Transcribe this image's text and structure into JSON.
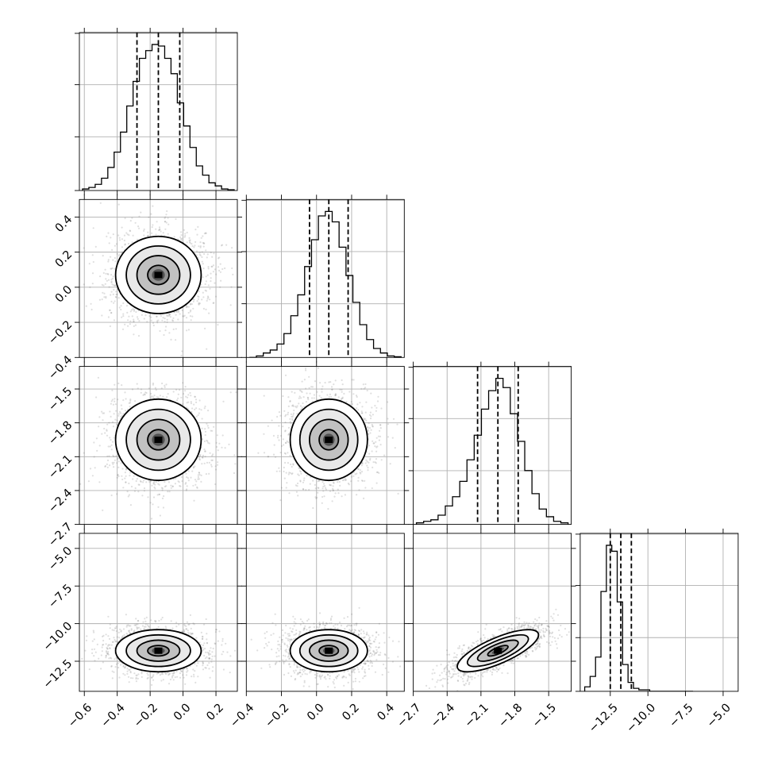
{
  "chart_data": {
    "type": "corner",
    "parameters": [
      {
        "mean": -0.15,
        "q16": -0.28,
        "q84": -0.02,
        "lim": [
          -0.63,
          0.33
        ],
        "ticks": [
          -0.6,
          -0.4,
          -0.2,
          0.0,
          0.2
        ],
        "tick_labels": [
          "−0.6",
          "−0.4",
          "−0.2",
          "0.0",
          "0.2"
        ]
      },
      {
        "mean": 0.07,
        "q16": -0.04,
        "q84": 0.18,
        "lim": [
          -0.4,
          0.5
        ],
        "ticks": [
          -0.4,
          -0.2,
          0.0,
          0.2,
          0.4
        ],
        "tick_labels": [
          "−0.4",
          "−0.2",
          "0.0",
          "0.2",
          "0.4"
        ]
      },
      {
        "mean": -1.95,
        "q16": -2.13,
        "q84": -1.77,
        "lim": [
          -2.7,
          -1.3
        ],
        "ticks": [
          -2.7,
          -2.4,
          -2.1,
          -1.8,
          -1.5
        ],
        "tick_labels": [
          "−2.7",
          "−2.4",
          "−2.1",
          "−1.8",
          "−1.5"
        ]
      },
      {
        "mean": -11.8,
        "q16": -12.5,
        "q84": -11.1,
        "lim": [
          -14.5,
          -4.0
        ],
        "ticks": [
          -12.5,
          -10.0,
          -7.5,
          -5.0
        ],
        "tick_labels": [
          "−12.5",
          "−10.0",
          "−7.5",
          "−5.0"
        ]
      }
    ],
    "histograms": [
      [
        0.01,
        0.02,
        0.04,
        0.08,
        0.15,
        0.25,
        0.38,
        0.55,
        0.71,
        0.86,
        0.91,
        0.95,
        0.94,
        0.86,
        0.76,
        0.57,
        0.42,
        0.28,
        0.16,
        0.1,
        0.05,
        0.03,
        0.01,
        0.005
      ],
      [
        0.0,
        0.01,
        0.03,
        0.05,
        0.09,
        0.16,
        0.28,
        0.42,
        0.61,
        0.79,
        0.95,
        0.98,
        0.91,
        0.74,
        0.55,
        0.37,
        0.22,
        0.12,
        0.06,
        0.03,
        0.01,
        0.005
      ],
      [
        0.01,
        0.02,
        0.03,
        0.06,
        0.12,
        0.18,
        0.28,
        0.42,
        0.58,
        0.75,
        0.87,
        0.95,
        0.89,
        0.72,
        0.54,
        0.35,
        0.2,
        0.1,
        0.05,
        0.02,
        0.01
      ],
      [
        0.03,
        0.1,
        0.23,
        0.67,
        0.98,
        0.94,
        0.6,
        0.18,
        0.06,
        0.02,
        0.01,
        0.01,
        0.0,
        0.0,
        0.0,
        0.0,
        0.0,
        0.0,
        0.0,
        0.0
      ]
    ],
    "correlations": [
      [
        1.0,
        0.0,
        0.0,
        0.0
      ],
      [
        0.0,
        1.0,
        0.0,
        0.0
      ],
      [
        0.0,
        0.0,
        1.0,
        0.75
      ],
      [
        0.0,
        0.0,
        0.75,
        1.0
      ]
    ],
    "contour_levels_sigma": [
      0.5,
      1.0,
      1.5,
      2.0
    ],
    "quantiles": [
      0.16,
      0.5,
      0.84
    ],
    "grid": true
  },
  "colors": {
    "ink": "#000000",
    "scatter": "#6e6e6e",
    "grid": "#b0b0b0"
  }
}
